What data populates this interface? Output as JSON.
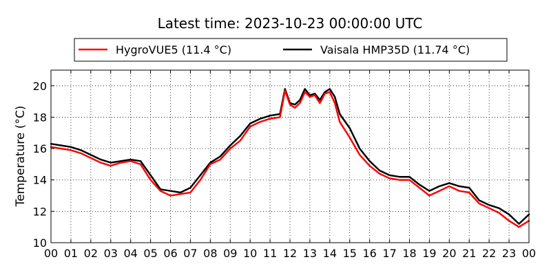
{
  "chart_data": {
    "type": "line",
    "title": "Latest time: 2023-10-23 00:00:00 UTC",
    "xlabel": "",
    "ylabel": "Temperature (°C)",
    "x_tick_labels": [
      "00",
      "01",
      "02",
      "03",
      "04",
      "05",
      "06",
      "07",
      "08",
      "09",
      "10",
      "11",
      "12",
      "13",
      "14",
      "15",
      "16",
      "17",
      "18",
      "19",
      "20",
      "21",
      "22",
      "23",
      "00"
    ],
    "xlim": [
      0,
      24
    ],
    "ylim": [
      10,
      21
    ],
    "y_ticks": [
      10,
      12,
      14,
      16,
      18,
      20
    ],
    "grid": true,
    "legend_position": "top",
    "series": [
      {
        "name": "HygroVUE5 (11.4 °C)",
        "color": "#ff0000",
        "x": [
          0,
          0.5,
          1,
          1.5,
          2,
          2.5,
          3,
          3.5,
          4,
          4.5,
          5,
          5.5,
          6,
          6.5,
          7,
          7.5,
          8,
          8.5,
          9,
          9.5,
          10,
          10.5,
          11,
          11.5,
          11.75,
          12,
          12.25,
          12.5,
          12.75,
          13,
          13.25,
          13.5,
          13.75,
          14,
          14.25,
          14.5,
          15,
          15.5,
          16,
          16.5,
          17,
          17.5,
          18,
          18.5,
          19,
          19.5,
          20,
          20.5,
          21,
          21.5,
          22,
          22.5,
          23,
          23.5,
          24
        ],
        "values": [
          16.1,
          16.0,
          15.9,
          15.7,
          15.4,
          15.1,
          14.9,
          15.1,
          15.2,
          15.0,
          14.0,
          13.3,
          13.0,
          13.1,
          13.2,
          14.0,
          15.0,
          15.3,
          16.0,
          16.5,
          17.4,
          17.7,
          17.9,
          18.0,
          19.7,
          18.8,
          18.6,
          18.9,
          19.6,
          19.3,
          19.4,
          18.9,
          19.5,
          19.6,
          18.9,
          17.7,
          16.7,
          15.6,
          14.9,
          14.4,
          14.1,
          14.0,
          14.0,
          13.5,
          13.0,
          13.3,
          13.6,
          13.3,
          13.2,
          12.5,
          12.2,
          11.9,
          11.4,
          11.0,
          11.4
        ]
      },
      {
        "name": "Vaisala HMP35D (11.74 °C)",
        "color": "#000000",
        "x": [
          0,
          0.5,
          1,
          1.5,
          2,
          2.5,
          3,
          3.5,
          4,
          4.5,
          5,
          5.5,
          6,
          6.5,
          7,
          7.5,
          8,
          8.5,
          9,
          9.5,
          10,
          10.5,
          11,
          11.5,
          11.75,
          12,
          12.25,
          12.5,
          12.75,
          13,
          13.25,
          13.5,
          13.75,
          14,
          14.25,
          14.5,
          15,
          15.5,
          16,
          16.5,
          17,
          17.5,
          18,
          18.5,
          19,
          19.5,
          20,
          20.5,
          21,
          21.5,
          22,
          22.5,
          23,
          23.5,
          24
        ],
        "values": [
          16.3,
          16.2,
          16.1,
          15.9,
          15.6,
          15.3,
          15.1,
          15.2,
          15.3,
          15.2,
          14.3,
          13.4,
          13.3,
          13.2,
          13.5,
          14.3,
          15.1,
          15.5,
          16.2,
          16.8,
          17.6,
          17.9,
          18.1,
          18.2,
          19.8,
          18.9,
          18.8,
          19.1,
          19.8,
          19.4,
          19.5,
          19.1,
          19.6,
          19.8,
          19.3,
          18.2,
          17.3,
          16.0,
          15.2,
          14.6,
          14.3,
          14.2,
          14.2,
          13.7,
          13.3,
          13.6,
          13.8,
          13.6,
          13.5,
          12.7,
          12.4,
          12.2,
          11.8,
          11.2,
          11.8
        ]
      }
    ]
  }
}
